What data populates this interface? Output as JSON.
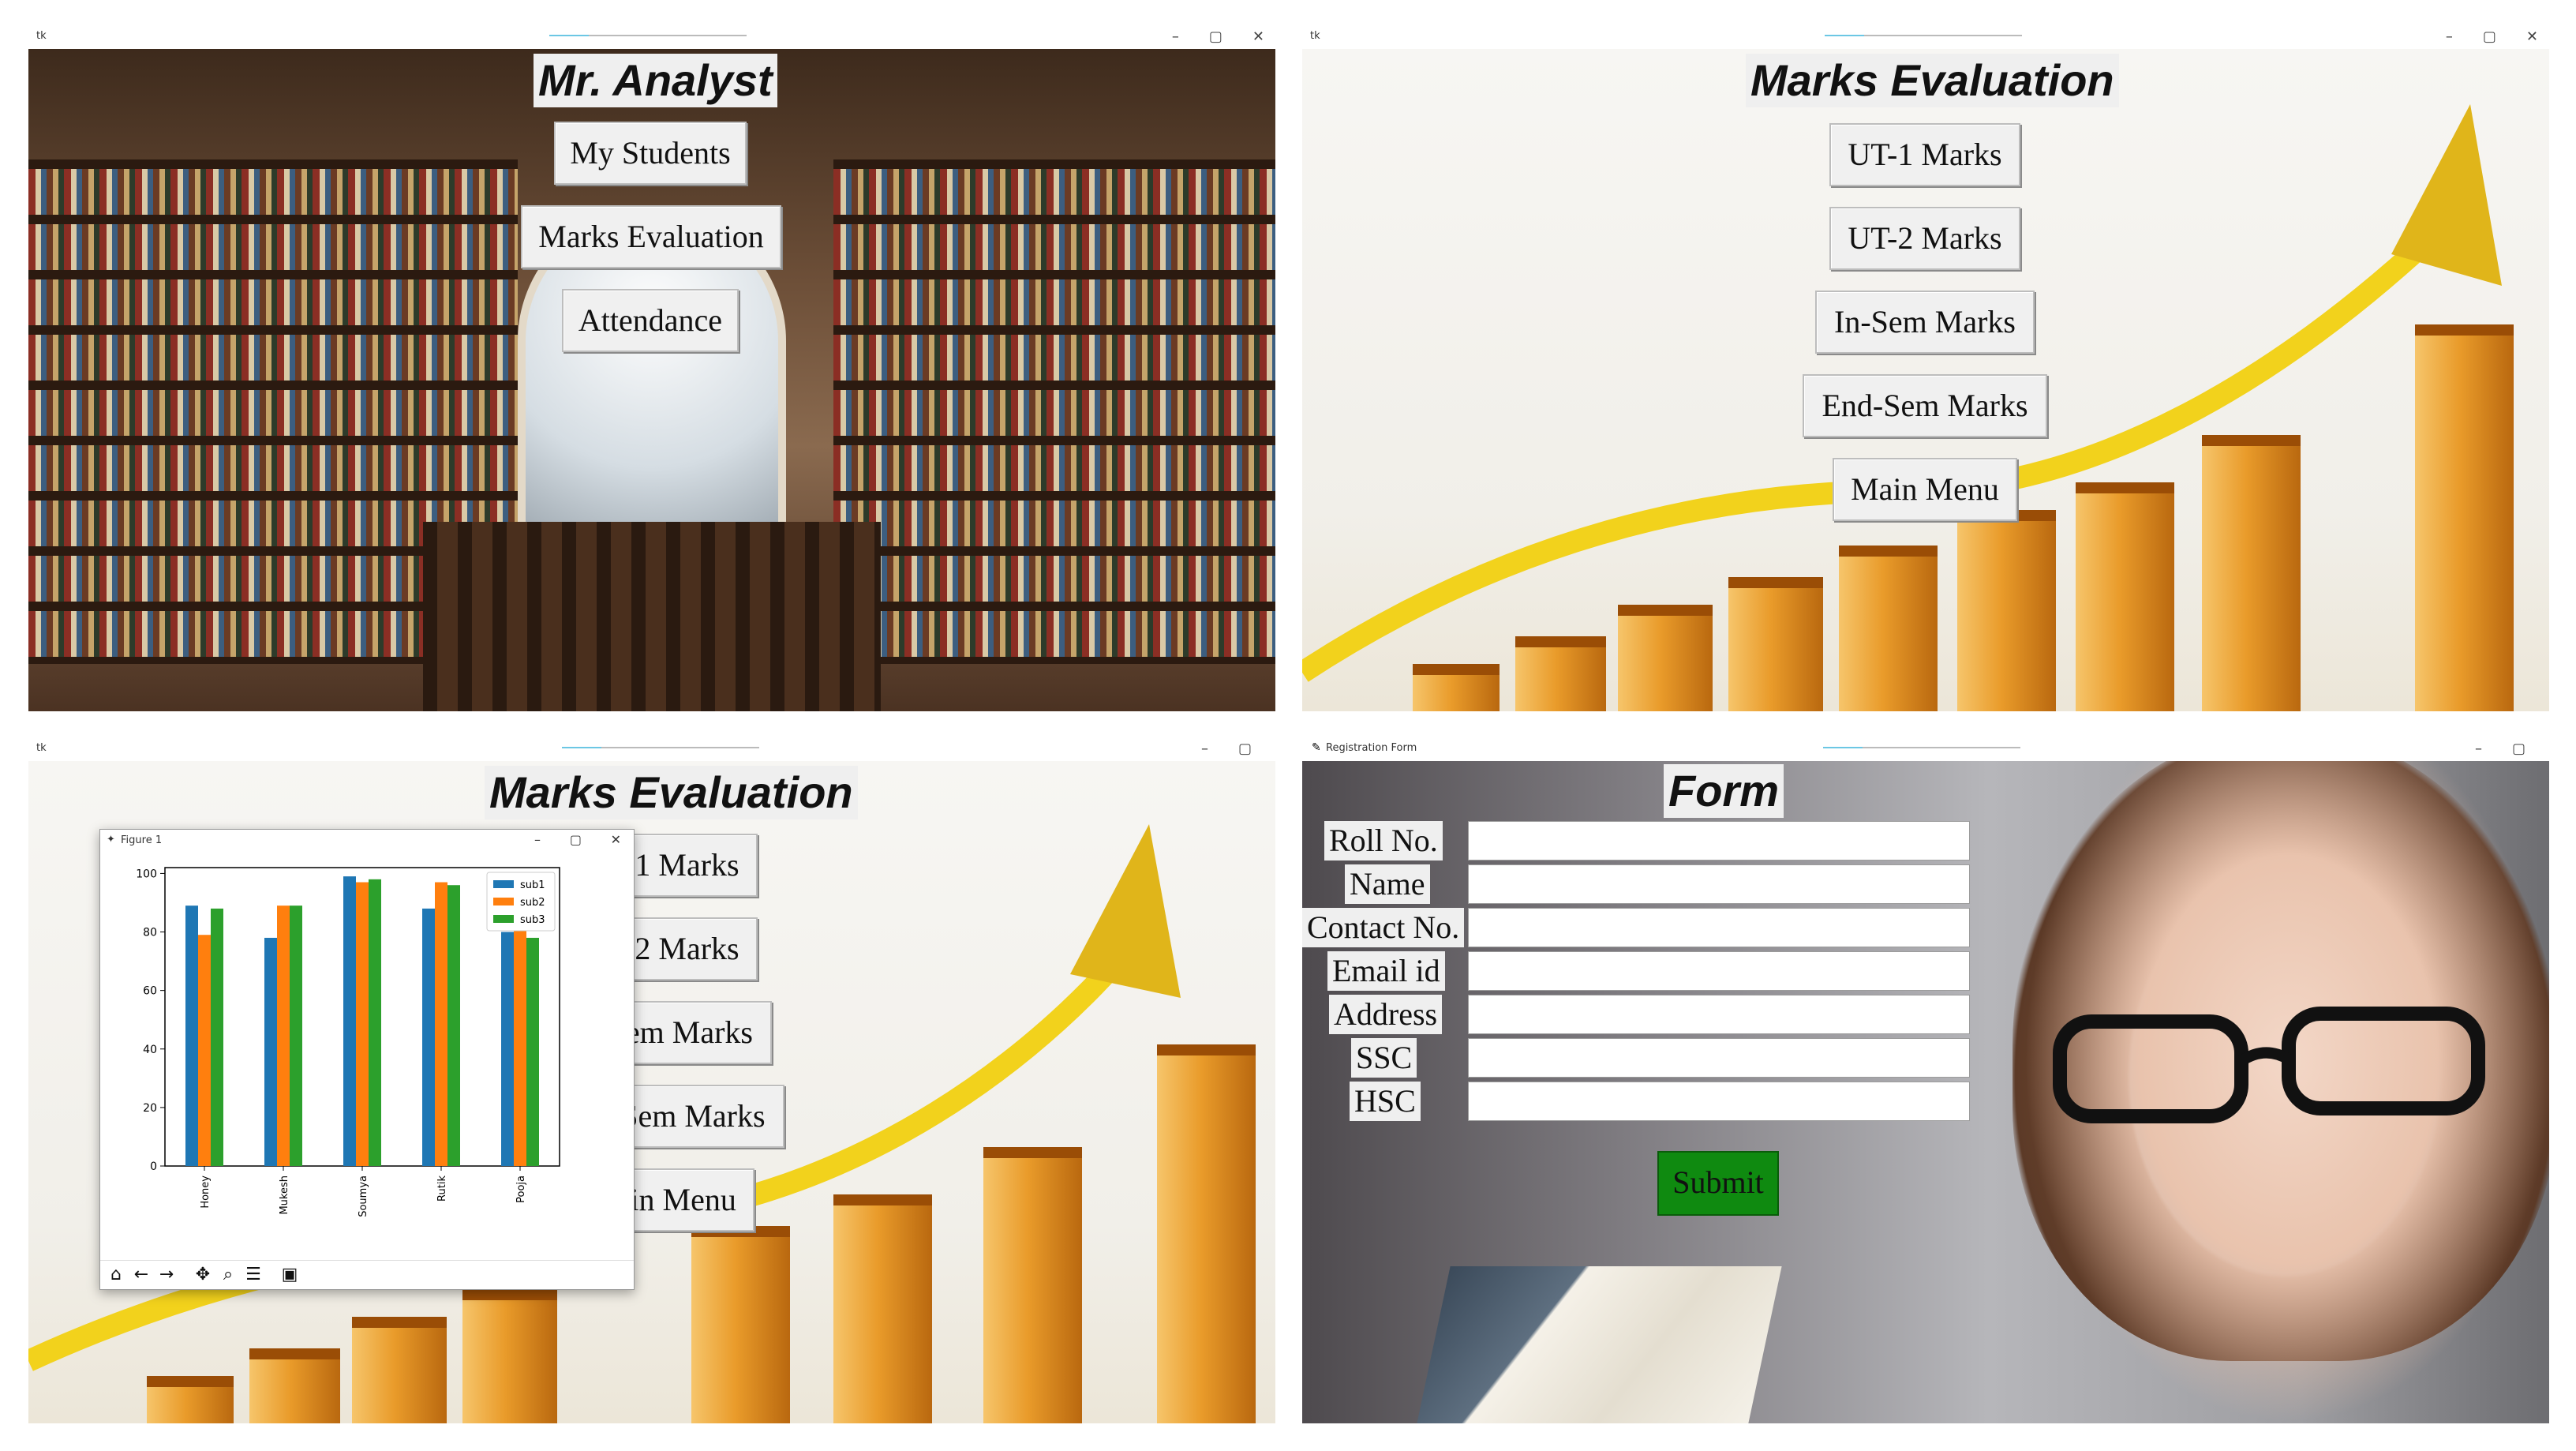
{
  "panels": {
    "main_menu": {
      "window_title": "tk",
      "heading": "Mr. Analyst",
      "buttons": [
        "My Students",
        "Marks Evaluation",
        "Attendance"
      ]
    },
    "marks_menu": {
      "window_title": "tk",
      "heading": "Marks Evaluation",
      "buttons": [
        "UT-1 Marks",
        "UT-2 Marks",
        "In-Sem Marks",
        "End-Sem Marks",
        "Main Menu"
      ]
    },
    "marks_with_figure": {
      "window_title": "tk",
      "heading": "Marks Evaluation",
      "buttons": [
        "UT-1 Marks",
        "UT-2 Marks",
        "In-Sem Marks",
        "End-Sem Marks",
        "Main Menu"
      ],
      "figure_title": "Figure 1"
    },
    "registration": {
      "window_title": "Registration Form",
      "heading": "Form",
      "fields": [
        "Roll No.",
        "Name",
        "Contact No.",
        "Email id",
        "Address",
        "SSC",
        "HSC"
      ],
      "submit_label": "Submit"
    }
  },
  "window_controls": [
    "–",
    "▢",
    "✕"
  ],
  "colors": {
    "submit_green": "#0f8a10",
    "sub1": "#1f77b4",
    "sub2": "#ff7f0e",
    "sub3": "#2ca02c"
  },
  "chart_data": {
    "type": "bar",
    "categories": [
      "Honey",
      "Mukesh",
      "Soumya",
      "Rutik",
      "Pooja"
    ],
    "series": [
      {
        "name": "sub1",
        "values": [
          89,
          78,
          99,
          88,
          80
        ]
      },
      {
        "name": "sub2",
        "values": [
          79,
          89,
          97,
          97,
          84
        ]
      },
      {
        "name": "sub3",
        "values": [
          88,
          89,
          98,
          96,
          78
        ]
      }
    ],
    "yticks": [
      0,
      20,
      40,
      60,
      80,
      100
    ],
    "ylim": [
      0,
      102
    ],
    "legend": "top-right",
    "title": "",
    "xlabel": "",
    "ylabel": ""
  }
}
